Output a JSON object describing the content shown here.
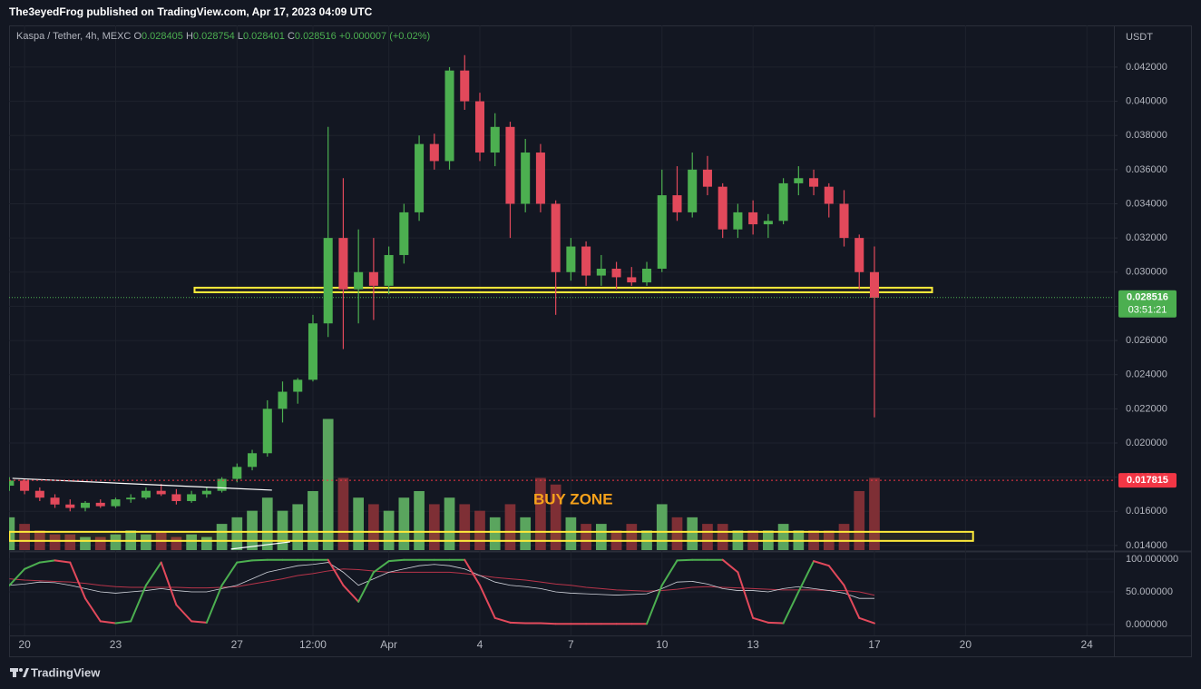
{
  "chart_data": {
    "type": "candlestick",
    "header": "The3eyedFrog published on TradingView.com, Apr 17, 2023 04:09 UTC",
    "legend": {
      "symbol": "Kaspa / Tether, 4h, MEXC",
      "o_label": "O",
      "open": 0.028405,
      "h_label": "H",
      "high": 0.028754,
      "l_label": "L",
      "low": 0.028401,
      "c_label": "C",
      "close": 0.028516,
      "change": "+0.000007 (+0.02%)"
    },
    "currency": "USDT",
    "footer": "TradingView",
    "annotation": "BUY ZONE",
    "categories": [
      null,
      "20",
      null,
      null,
      null,
      null,
      null,
      "23",
      null,
      null,
      null,
      null,
      null,
      null,
      null,
      "27",
      null,
      null,
      null,
      null,
      "12:00",
      null,
      null,
      null,
      null,
      "Apr",
      null,
      null,
      null,
      null,
      null,
      "4",
      null,
      null,
      null,
      null,
      null,
      "7",
      null,
      null,
      null,
      null,
      null,
      "10",
      null,
      null,
      null,
      null,
      null,
      "13",
      null,
      null,
      null,
      null,
      null,
      null,
      null,
      "17",
      null,
      null,
      null,
      null,
      null,
      "20",
      null,
      null,
      null,
      null,
      null,
      null,
      null,
      "24",
      null
    ],
    "ohlc": [
      [
        0.0175,
        0.018,
        0.0172,
        0.0178
      ],
      [
        0.0178,
        0.0179,
        0.017,
        0.0172
      ],
      [
        0.0172,
        0.0174,
        0.0166,
        0.0168
      ],
      [
        0.0168,
        0.017,
        0.0162,
        0.0164
      ],
      [
        0.0164,
        0.0167,
        0.016,
        0.0162
      ],
      [
        0.0162,
        0.0166,
        0.016,
        0.0165
      ],
      [
        0.0165,
        0.0167,
        0.0162,
        0.0163
      ],
      [
        0.0163,
        0.0168,
        0.0162,
        0.0167
      ],
      [
        0.0167,
        0.017,
        0.0165,
        0.0168
      ],
      [
        0.0168,
        0.0174,
        0.0167,
        0.0172
      ],
      [
        0.0172,
        0.0176,
        0.0169,
        0.017
      ],
      [
        0.017,
        0.0173,
        0.0164,
        0.0166
      ],
      [
        0.0166,
        0.0172,
        0.0165,
        0.017
      ],
      [
        0.017,
        0.0174,
        0.0168,
        0.0172
      ],
      [
        0.0172,
        0.018,
        0.0171,
        0.0179
      ],
      [
        0.0179,
        0.0188,
        0.0177,
        0.0186
      ],
      [
        0.0186,
        0.0196,
        0.0184,
        0.0194
      ],
      [
        0.0194,
        0.0225,
        0.0192,
        0.022
      ],
      [
        0.022,
        0.0236,
        0.0212,
        0.023
      ],
      [
        0.023,
        0.0238,
        0.0223,
        0.0237
      ],
      [
        0.0237,
        0.0275,
        0.0236,
        0.027
      ],
      [
        0.027,
        0.0385,
        0.0262,
        0.032
      ],
      [
        0.032,
        0.0355,
        0.0255,
        0.029
      ],
      [
        0.029,
        0.0325,
        0.027,
        0.03
      ],
      [
        0.03,
        0.032,
        0.0272,
        0.0292
      ],
      [
        0.0292,
        0.0315,
        0.0287,
        0.031
      ],
      [
        0.031,
        0.034,
        0.0305,
        0.0335
      ],
      [
        0.0335,
        0.038,
        0.033,
        0.0375
      ],
      [
        0.0375,
        0.0381,
        0.036,
        0.0365
      ],
      [
        0.0365,
        0.042,
        0.036,
        0.0418
      ],
      [
        0.0418,
        0.0427,
        0.0395,
        0.04
      ],
      [
        0.04,
        0.0405,
        0.0365,
        0.037
      ],
      [
        0.037,
        0.0393,
        0.0362,
        0.0385
      ],
      [
        0.0385,
        0.0388,
        0.032,
        0.034
      ],
      [
        0.034,
        0.0378,
        0.0335,
        0.037
      ],
      [
        0.037,
        0.0375,
        0.0335,
        0.034
      ],
      [
        0.034,
        0.0342,
        0.0275,
        0.03
      ],
      [
        0.03,
        0.032,
        0.0295,
        0.0315
      ],
      [
        0.0315,
        0.0318,
        0.0292,
        0.0298
      ],
      [
        0.0298,
        0.031,
        0.0292,
        0.0302
      ],
      [
        0.0302,
        0.0306,
        0.029,
        0.0297
      ],
      [
        0.0297,
        0.0303,
        0.0292,
        0.0294
      ],
      [
        0.0294,
        0.0306,
        0.0292,
        0.0302
      ],
      [
        0.0302,
        0.036,
        0.03,
        0.0345
      ],
      [
        0.0345,
        0.0362,
        0.033,
        0.0335
      ],
      [
        0.0335,
        0.037,
        0.0332,
        0.036
      ],
      [
        0.036,
        0.0368,
        0.0345,
        0.035
      ],
      [
        0.035,
        0.0352,
        0.032,
        0.0325
      ],
      [
        0.0325,
        0.034,
        0.032,
        0.0335
      ],
      [
        0.0335,
        0.0342,
        0.0322,
        0.0328
      ],
      [
        0.0328,
        0.0334,
        0.032,
        0.033
      ],
      [
        0.033,
        0.0355,
        0.0328,
        0.0352
      ],
      [
        0.0352,
        0.0362,
        0.0345,
        0.0355
      ],
      [
        0.0355,
        0.036,
        0.0345,
        0.035
      ],
      [
        0.035,
        0.0352,
        0.0332,
        0.034
      ],
      [
        0.034,
        0.0348,
        0.0315,
        0.032
      ],
      [
        0.032,
        0.0322,
        0.029,
        0.03
      ],
      [
        0.03,
        0.0315,
        0.0215,
        0.0285
      ],
      null,
      null,
      null,
      null,
      null,
      null,
      null,
      null,
      null,
      null,
      null,
      null,
      null,
      null,
      null
    ],
    "volume": [
      25,
      20,
      15,
      12,
      12,
      10,
      10,
      12,
      15,
      12,
      14,
      10,
      12,
      10,
      20,
      25,
      30,
      40,
      30,
      35,
      45,
      100,
      55,
      40,
      35,
      30,
      40,
      45,
      35,
      40,
      35,
      30,
      25,
      35,
      25,
      55,
      50,
      25,
      20,
      20,
      15,
      20,
      15,
      35,
      25,
      25,
      20,
      20,
      15,
      15,
      15,
      20,
      15,
      15,
      15,
      20,
      45,
      55,
      null,
      null,
      null,
      null,
      null,
      null,
      null,
      null,
      null,
      null,
      null,
      null,
      null,
      null,
      null
    ],
    "volume_lim": [
      0,
      400
    ],
    "osc_k": [
      60,
      85,
      95,
      98,
      95,
      40,
      5,
      2,
      5,
      60,
      95,
      30,
      5,
      3,
      60,
      95,
      98,
      99,
      99,
      99,
      99,
      99,
      60,
      35,
      80,
      97,
      99,
      99,
      99,
      99,
      99,
      60,
      10,
      3,
      2,
      2,
      1,
      1,
      1,
      1,
      1,
      1,
      1,
      60,
      98,
      99,
      99,
      99,
      80,
      10,
      3,
      2,
      50,
      97,
      90,
      60,
      10,
      2,
      null,
      null,
      null,
      null,
      null,
      null,
      null,
      null,
      null,
      null,
      null,
      null,
      null,
      null,
      null
    ],
    "osc_fast": [
      60,
      62,
      65,
      64,
      60,
      55,
      50,
      48,
      50,
      52,
      55,
      52,
      50,
      50,
      55,
      60,
      70,
      80,
      85,
      90,
      92,
      95,
      80,
      60,
      70,
      80,
      85,
      90,
      92,
      90,
      85,
      75,
      65,
      60,
      58,
      55,
      50,
      48,
      47,
      46,
      45,
      46,
      47,
      55,
      65,
      66,
      62,
      55,
      52,
      52,
      50,
      55,
      58,
      55,
      52,
      48,
      40,
      40,
      null,
      null,
      null,
      null,
      null,
      null,
      null,
      null,
      null,
      null,
      null,
      null,
      null,
      null,
      null
    ],
    "osc_slow": [
      70,
      68,
      67,
      66,
      65,
      63,
      60,
      58,
      57,
      57,
      57,
      57,
      56,
      56,
      57,
      58,
      62,
      66,
      70,
      75,
      78,
      82,
      85,
      84,
      82,
      80,
      80,
      80,
      80,
      80,
      78,
      75,
      72,
      70,
      68,
      65,
      62,
      60,
      57,
      55,
      53,
      52,
      51,
      52,
      54,
      57,
      58,
      57,
      56,
      55,
      54,
      53,
      53,
      53,
      52,
      52,
      50,
      45,
      null,
      null,
      null,
      null,
      null,
      null,
      null,
      null,
      null,
      null,
      null,
      null,
      null,
      null,
      null
    ],
    "ylim": [
      0.01373,
      0.04444
    ],
    "yticks": [
      {
        "value": 0.014,
        "label": "0.014000"
      },
      {
        "value": 0.016,
        "label": "0.016000"
      },
      {
        "value": 0.018,
        "label": "0.018000"
      },
      {
        "value": 0.02,
        "label": "0.020000"
      },
      {
        "value": 0.022,
        "label": "0.022000"
      },
      {
        "value": 0.024,
        "label": "0.024000"
      },
      {
        "value": 0.026,
        "label": "0.026000"
      },
      {
        "value": 0.028,
        "label": "0.028000"
      },
      {
        "value": 0.03,
        "label": "0.030000"
      },
      {
        "value": 0.032,
        "label": "0.032000"
      },
      {
        "value": 0.034,
        "label": "0.034000"
      },
      {
        "value": 0.036,
        "label": "0.036000"
      },
      {
        "value": 0.038,
        "label": "0.038000"
      },
      {
        "value": 0.04,
        "label": "0.040000"
      },
      {
        "value": 0.042,
        "label": "0.042000"
      }
    ],
    "osc_lim": [
      -16.7,
      109.7
    ],
    "osc_ticks": [
      {
        "value": 100,
        "label": "100.000000"
      },
      {
        "value": 50,
        "label": "50.000000"
      },
      {
        "value": 0,
        "label": "0.000000"
      }
    ],
    "last_price": 0.028516,
    "countdown": "03:51:21",
    "alert_price": 0.017815,
    "zones": [
      {
        "from": 12.2,
        "to": 60.8,
        "top": 0.02909,
        "bottom": 0.02882
      },
      {
        "from": 0,
        "to": 63.5,
        "top": 0.0148,
        "bottom": 0.01427
      }
    ],
    "lines": [
      {
        "from": 0.2,
        "to": 17.3,
        "start": 0.01793,
        "end": 0.01724
      },
      {
        "from": 14.6,
        "to": 18.5,
        "start": 0.01379,
        "end": 0.01421
      }
    ],
    "grid": true,
    "up_color": "#4caf50",
    "down_color": "#e2495b",
    "volume_up_color": "#5aa55e",
    "volume_down_color": "#7e2f35",
    "zone_color": "#ffeb3b",
    "line_color": "#ffffff",
    "osc_up_color": "#4caf50",
    "osc_down_color": "#e2495b",
    "osc_fast_color": "#d1d4dc",
    "osc_slow_color": "#b8344a",
    "alert_color": "#f23645",
    "annotation_color": "#f7a21b"
  }
}
